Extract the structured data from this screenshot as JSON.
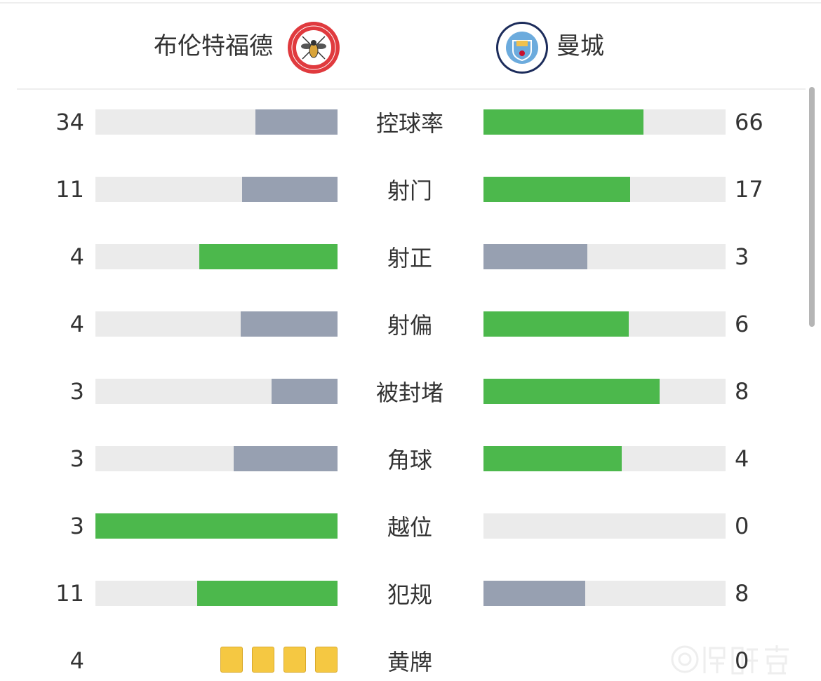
{
  "home": {
    "name": "布伦特福德",
    "logo_text": "BRENTFORD FOOTBALL CLUB 1889"
  },
  "away": {
    "name": "曼城",
    "logo_text": "MANCHESTER CITY"
  },
  "colors": {
    "winner": "#4cb84c",
    "loser": "#97a0b1",
    "track": "#ebebeb",
    "yellow_card": "#f5c842"
  },
  "stats": [
    {
      "label": "控球率",
      "home": "34",
      "away": "66"
    },
    {
      "label": "射门",
      "home": "11",
      "away": "17"
    },
    {
      "label": "射正",
      "home": "4",
      "away": "3"
    },
    {
      "label": "射偏",
      "home": "4",
      "away": "6"
    },
    {
      "label": "被封堵",
      "home": "3",
      "away": "8"
    },
    {
      "label": "角球",
      "home": "3",
      "away": "4"
    },
    {
      "label": "越位",
      "home": "3",
      "away": "0"
    },
    {
      "label": "犯规",
      "home": "11",
      "away": "8"
    }
  ],
  "yellow_cards": {
    "label": "黄牌",
    "home": "4",
    "away": "0"
  },
  "watermark": "懂球帝"
}
